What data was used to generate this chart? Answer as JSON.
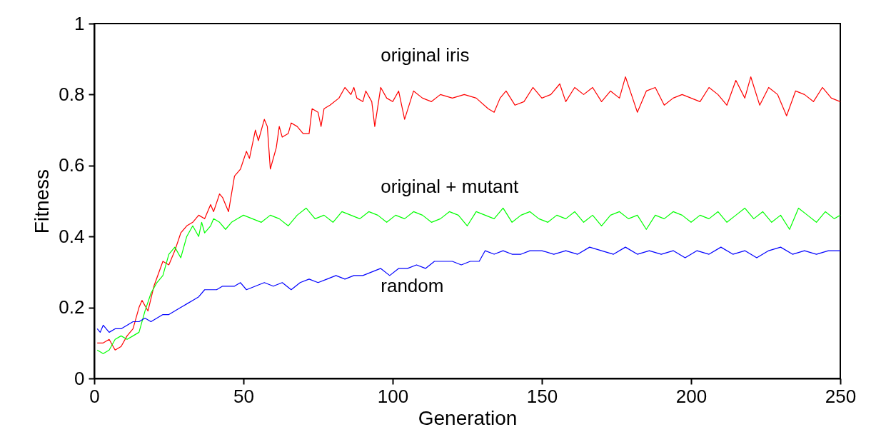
{
  "chart_data": {
    "type": "line",
    "xlabel": "Generation",
    "ylabel": "Fitness",
    "xlim": [
      0,
      250
    ],
    "xticks": [
      0,
      50,
      100,
      150,
      200,
      250
    ],
    "ylim": [
      0,
      1
    ],
    "yticks": [
      0,
      0.2,
      0.4,
      0.6,
      0.8,
      1
    ],
    "grid": false,
    "series": [
      {
        "name": "original iris",
        "color": "#ff0000",
        "x": [
          1,
          3,
          5,
          7,
          9,
          11,
          13,
          15,
          16,
          18,
          20,
          23,
          25,
          27,
          29,
          31,
          33,
          35,
          37,
          39,
          40,
          42,
          43,
          45,
          47,
          49,
          51,
          52,
          54,
          55,
          57,
          58,
          59,
          61,
          62,
          63,
          65,
          66,
          68,
          70,
          72,
          73,
          75,
          76,
          77,
          79,
          82,
          84,
          86,
          87,
          88,
          90,
          91,
          93,
          94,
          96,
          98,
          100,
          102,
          104,
          107,
          110,
          113,
          116,
          120,
          124,
          128,
          132,
          134,
          136,
          138,
          141,
          144,
          147,
          150,
          153,
          156,
          158,
          161,
          164,
          167,
          170,
          173,
          176,
          178,
          180,
          182,
          185,
          188,
          191,
          194,
          197,
          200,
          203,
          206,
          209,
          212,
          215,
          218,
          220,
          223,
          226,
          229,
          232,
          235,
          238,
          241,
          244,
          247,
          250
        ],
        "values": [
          0.1,
          0.1,
          0.11,
          0.08,
          0.09,
          0.12,
          0.14,
          0.2,
          0.22,
          0.19,
          0.26,
          0.33,
          0.32,
          0.36,
          0.41,
          0.43,
          0.44,
          0.46,
          0.45,
          0.49,
          0.47,
          0.52,
          0.51,
          0.47,
          0.57,
          0.59,
          0.64,
          0.62,
          0.7,
          0.67,
          0.73,
          0.71,
          0.59,
          0.65,
          0.71,
          0.68,
          0.69,
          0.72,
          0.71,
          0.69,
          0.69,
          0.76,
          0.75,
          0.71,
          0.76,
          0.77,
          0.79,
          0.82,
          0.8,
          0.82,
          0.79,
          0.78,
          0.81,
          0.78,
          0.71,
          0.82,
          0.79,
          0.78,
          0.81,
          0.73,
          0.81,
          0.79,
          0.78,
          0.8,
          0.79,
          0.8,
          0.79,
          0.76,
          0.75,
          0.79,
          0.81,
          0.77,
          0.78,
          0.82,
          0.79,
          0.8,
          0.83,
          0.78,
          0.82,
          0.8,
          0.82,
          0.78,
          0.81,
          0.79,
          0.85,
          0.8,
          0.75,
          0.81,
          0.82,
          0.77,
          0.79,
          0.8,
          0.79,
          0.78,
          0.82,
          0.8,
          0.77,
          0.84,
          0.79,
          0.85,
          0.77,
          0.82,
          0.8,
          0.74,
          0.81,
          0.8,
          0.78,
          0.82,
          0.79,
          0.78
        ]
      },
      {
        "name": "original + mutant",
        "color": "#00ff00",
        "x": [
          1,
          3,
          5,
          7,
          9,
          11,
          13,
          15,
          17,
          19,
          21,
          23,
          25,
          27,
          29,
          31,
          33,
          35,
          36,
          37,
          39,
          40,
          42,
          44,
          46,
          48,
          50,
          53,
          56,
          59,
          62,
          65,
          68,
          71,
          74,
          77,
          80,
          83,
          86,
          89,
          92,
          95,
          98,
          101,
          104,
          107,
          110,
          113,
          116,
          119,
          122,
          125,
          128,
          131,
          134,
          137,
          140,
          143,
          146,
          149,
          152,
          155,
          158,
          161,
          164,
          167,
          170,
          173,
          176,
          179,
          182,
          185,
          188,
          191,
          194,
          197,
          200,
          203,
          206,
          209,
          212,
          215,
          218,
          221,
          224,
          227,
          230,
          233,
          236,
          239,
          242,
          245,
          248,
          250
        ],
        "values": [
          0.08,
          0.07,
          0.08,
          0.11,
          0.12,
          0.11,
          0.12,
          0.13,
          0.19,
          0.24,
          0.27,
          0.29,
          0.35,
          0.37,
          0.34,
          0.4,
          0.43,
          0.4,
          0.44,
          0.41,
          0.43,
          0.45,
          0.44,
          0.42,
          0.44,
          0.45,
          0.46,
          0.45,
          0.44,
          0.46,
          0.45,
          0.43,
          0.46,
          0.48,
          0.45,
          0.46,
          0.44,
          0.47,
          0.46,
          0.45,
          0.47,
          0.46,
          0.44,
          0.46,
          0.45,
          0.47,
          0.46,
          0.44,
          0.45,
          0.47,
          0.46,
          0.43,
          0.47,
          0.46,
          0.45,
          0.48,
          0.44,
          0.46,
          0.47,
          0.45,
          0.44,
          0.46,
          0.45,
          0.47,
          0.44,
          0.46,
          0.43,
          0.46,
          0.47,
          0.45,
          0.46,
          0.42,
          0.46,
          0.45,
          0.47,
          0.46,
          0.44,
          0.46,
          0.45,
          0.47,
          0.44,
          0.46,
          0.48,
          0.45,
          0.47,
          0.44,
          0.46,
          0.42,
          0.48,
          0.46,
          0.44,
          0.47,
          0.45,
          0.46
        ]
      },
      {
        "name": "random",
        "color": "#0000ff",
        "x": [
          1,
          2,
          3,
          5,
          7,
          9,
          11,
          13,
          15,
          17,
          19,
          21,
          23,
          25,
          27,
          29,
          31,
          33,
          35,
          37,
          39,
          41,
          43,
          45,
          47,
          49,
          51,
          54,
          57,
          60,
          63,
          66,
          69,
          72,
          75,
          78,
          81,
          84,
          87,
          90,
          93,
          96,
          99,
          102,
          105,
          108,
          111,
          114,
          117,
          120,
          123,
          126,
          129,
          131,
          134,
          137,
          140,
          143,
          146,
          150,
          154,
          158,
          162,
          166,
          170,
          174,
          178,
          182,
          186,
          190,
          194,
          198,
          202,
          206,
          210,
          214,
          218,
          222,
          226,
          230,
          234,
          238,
          242,
          246,
          250
        ],
        "values": [
          0.14,
          0.13,
          0.15,
          0.13,
          0.14,
          0.14,
          0.15,
          0.16,
          0.16,
          0.17,
          0.16,
          0.17,
          0.18,
          0.18,
          0.19,
          0.2,
          0.21,
          0.22,
          0.23,
          0.25,
          0.25,
          0.25,
          0.26,
          0.26,
          0.26,
          0.27,
          0.25,
          0.26,
          0.27,
          0.26,
          0.27,
          0.25,
          0.27,
          0.28,
          0.27,
          0.28,
          0.29,
          0.28,
          0.29,
          0.29,
          0.3,
          0.31,
          0.29,
          0.31,
          0.31,
          0.32,
          0.31,
          0.33,
          0.33,
          0.33,
          0.32,
          0.33,
          0.33,
          0.36,
          0.35,
          0.36,
          0.35,
          0.35,
          0.36,
          0.36,
          0.35,
          0.36,
          0.35,
          0.37,
          0.36,
          0.35,
          0.37,
          0.35,
          0.36,
          0.35,
          0.36,
          0.34,
          0.36,
          0.35,
          0.37,
          0.35,
          0.36,
          0.34,
          0.36,
          0.37,
          0.35,
          0.36,
          0.35,
          0.36,
          0.36
        ]
      }
    ]
  }
}
